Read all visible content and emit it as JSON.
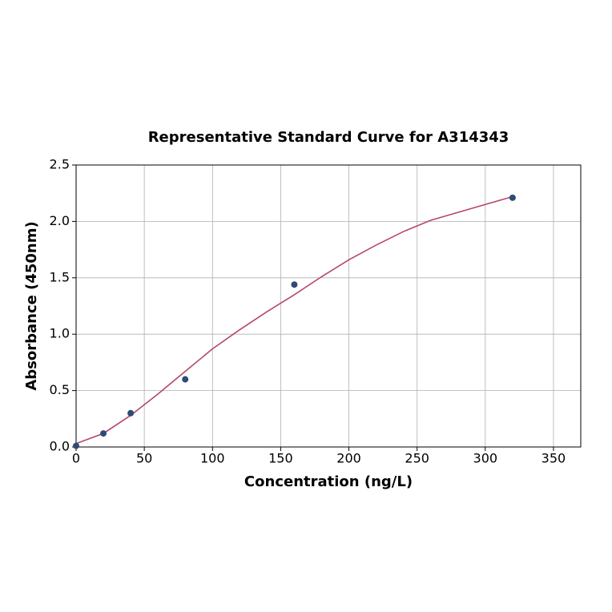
{
  "chart_data": {
    "type": "scatter",
    "title": "Representative Standard Curve for A314343",
    "x_label": "Concentration (ng/L)",
    "y_label": "Absorbance (450nm)",
    "xlim": [
      0,
      370
    ],
    "xticks": [
      0,
      50,
      100,
      150,
      200,
      250,
      300,
      350
    ],
    "ylim": [
      0,
      2.5
    ],
    "yticks": [
      {
        "value": 0,
        "label": "0.0"
      },
      {
        "value": 0.5,
        "label": "0.5"
      },
      {
        "value": 1,
        "label": "1.0"
      },
      {
        "value": 1.5,
        "label": "1.5"
      },
      {
        "value": 2,
        "label": "2.0"
      },
      {
        "value": 2.5,
        "label": "2.5"
      }
    ],
    "grid": true,
    "series": [
      {
        "type": "scatter",
        "color": "#2e4a78",
        "x": [
          0,
          20,
          40,
          80,
          160,
          320
        ],
        "values": [
          0.01,
          0.12,
          0.3,
          0.6,
          1.44,
          2.21
        ]
      },
      {
        "type": "line",
        "color": "#b5476a",
        "x": [
          0,
          20,
          40,
          60,
          80,
          100,
          120,
          140,
          160,
          180,
          200,
          220,
          240,
          260,
          280,
          300,
          320
        ],
        "values": [
          0.03,
          0.12,
          0.28,
          0.47,
          0.67,
          0.87,
          1.04,
          1.2,
          1.35,
          1.51,
          1.66,
          1.79,
          1.91,
          2.01,
          2.08,
          2.15,
          2.22
        ]
      }
    ]
  }
}
